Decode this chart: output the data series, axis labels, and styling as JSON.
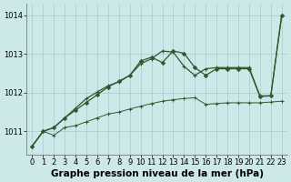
{
  "xlabel": "Graphe pression niveau de la mer (hPa)",
  "xlim": [
    -0.5,
    23.5
  ],
  "ylim": [
    1010.4,
    1014.3
  ],
  "yticks": [
    1011,
    1012,
    1013,
    1014
  ],
  "xticks": [
    0,
    1,
    2,
    3,
    4,
    5,
    6,
    7,
    8,
    9,
    10,
    11,
    12,
    13,
    14,
    15,
    16,
    17,
    18,
    19,
    20,
    21,
    22,
    23
  ],
  "bg_color": "#cce8e8",
  "grid_color": "#aacccc",
  "line_color": "#2d5a2d",
  "line1_x": [
    0,
    1,
    2,
    3,
    4,
    5,
    6,
    7,
    8,
    9,
    10,
    11,
    12,
    13,
    14,
    15,
    16,
    17,
    18,
    19,
    20,
    21,
    22,
    23
  ],
  "line1_y": [
    1010.62,
    1011.0,
    1010.9,
    1011.1,
    1011.15,
    1011.25,
    1011.35,
    1011.45,
    1011.5,
    1011.58,
    1011.65,
    1011.72,
    1011.78,
    1011.82,
    1011.85,
    1011.87,
    1011.7,
    1011.72,
    1011.74,
    1011.74,
    1011.74,
    1011.74,
    1011.76,
    1011.78
  ],
  "line2_x": [
    0,
    1,
    2,
    3,
    4,
    5,
    6,
    7,
    8,
    9,
    10,
    11,
    12,
    13,
    14,
    15,
    16,
    17,
    18,
    19,
    20,
    21,
    22,
    23
  ],
  "line2_y": [
    1010.62,
    1011.0,
    1011.1,
    1011.35,
    1011.55,
    1011.75,
    1011.95,
    1012.15,
    1012.3,
    1012.45,
    1012.82,
    1012.92,
    1012.78,
    1013.08,
    1013.02,
    1012.65,
    1012.45,
    1012.62,
    1012.62,
    1012.62,
    1012.62,
    1011.9,
    1011.92,
    1014.0
  ],
  "line3_x": [
    0,
    1,
    2,
    3,
    4,
    5,
    6,
    7,
    8,
    9,
    10,
    11,
    12,
    13,
    14,
    15,
    16,
    17,
    18,
    19,
    20,
    21,
    22,
    23
  ],
  "line3_y": [
    1010.62,
    1011.0,
    1011.1,
    1011.35,
    1011.6,
    1011.85,
    1012.02,
    1012.18,
    1012.28,
    1012.45,
    1012.75,
    1012.88,
    1013.08,
    1013.05,
    1012.68,
    1012.45,
    1012.62,
    1012.65,
    1012.65,
    1012.65,
    1012.65,
    1011.92,
    1011.92,
    1014.0
  ],
  "tick_fontsize": 6,
  "label_fontsize": 7.5
}
